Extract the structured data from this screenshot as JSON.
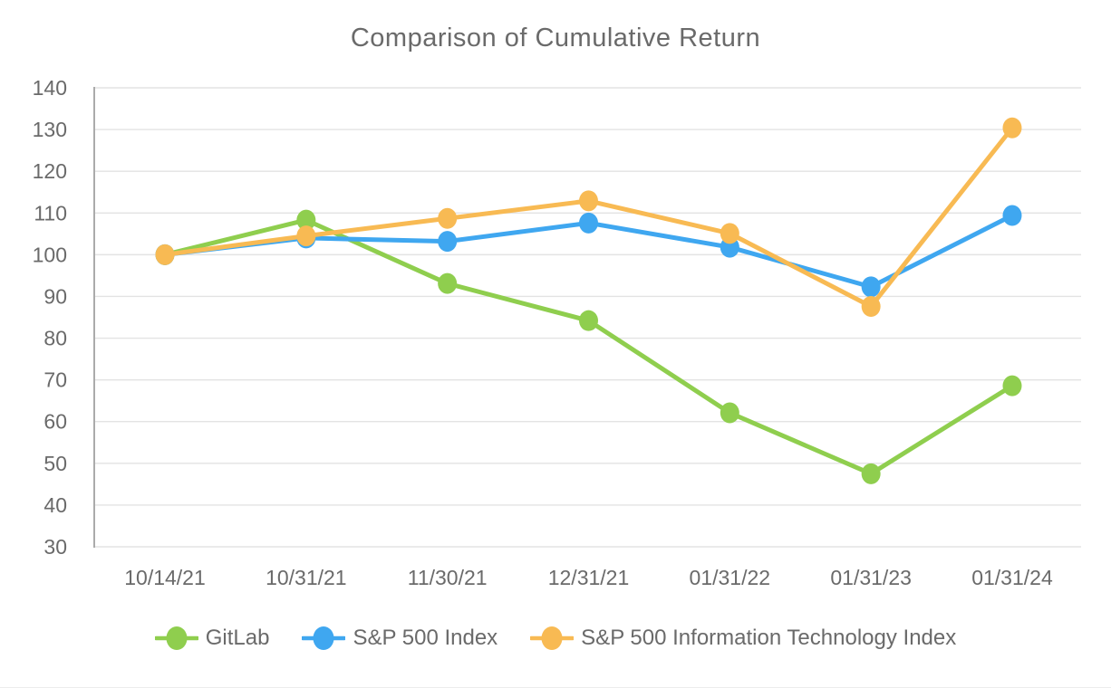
{
  "chart_data": {
    "type": "line",
    "title": "Comparison of Cumulative Return",
    "categories": [
      "10/14/21",
      "10/31/21",
      "11/30/21",
      "12/31/21",
      "01/31/22",
      "01/31/23",
      "01/31/24"
    ],
    "series": [
      {
        "name": "GitLab",
        "color": "#8FCE4E",
        "values": [
          100,
          108.3,
          93.1,
          84.2,
          62.1,
          47.5,
          68.6
        ]
      },
      {
        "name": "S&P 500 Index",
        "color": "#3FA7F0",
        "values": [
          100,
          104.0,
          103.2,
          107.6,
          101.8,
          92.3,
          109.4
        ]
      },
      {
        "name": "S&P 500 Information Technology Index",
        "color": "#F8BA53",
        "values": [
          100,
          104.5,
          108.7,
          112.9,
          105.1,
          87.6,
          130.4
        ]
      }
    ],
    "ylim": [
      30,
      140
    ],
    "y_tick_step": 10,
    "y_tick_labels": [
      "30",
      "40",
      "50",
      "60",
      "70",
      "80",
      "90",
      "100",
      "110",
      "120",
      "130",
      "140"
    ],
    "xlabel": "",
    "ylabel": "",
    "grid": "horizontal",
    "legend_position": "bottom",
    "colors": {
      "text": "#6A6A6A",
      "gridline": "#E3E3E3",
      "axis_line": "#ABABAB",
      "background": "#FFFFFF"
    }
  }
}
